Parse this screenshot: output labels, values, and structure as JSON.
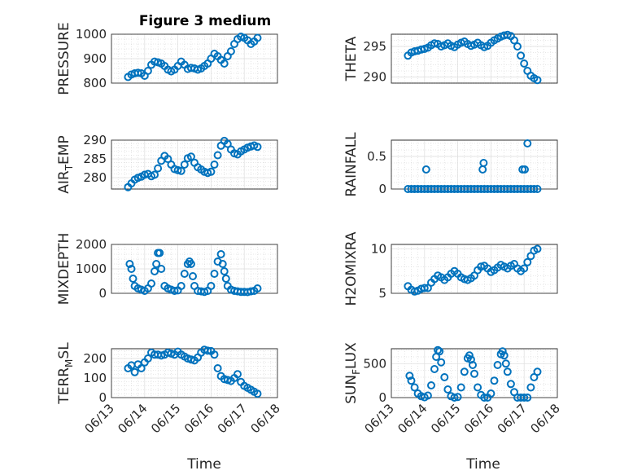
{
  "figure_title": "Figure 3 medium",
  "colors": {
    "marker": "#0072bd",
    "axes": "#262626",
    "grid": "#dedede"
  },
  "x_axis": {
    "label": "Time",
    "tick_labels": [
      "06/13",
      "06/14",
      "06/15",
      "06/16",
      "06/17",
      "06/18"
    ],
    "range_days": [
      13,
      18
    ]
  },
  "chart_data": [
    {
      "type": "scatter",
      "ylabel": "PRESSURE",
      "ylim": [
        800,
        1000
      ],
      "yticks": [
        800,
        900,
        1000
      ],
      "grid": true,
      "x": [
        13.5,
        13.6,
        13.7,
        13.8,
        13.9,
        14.0,
        14.1,
        14.2,
        14.3,
        14.4,
        14.5,
        14.6,
        14.7,
        14.8,
        14.9,
        15.0,
        15.1,
        15.2,
        15.3,
        15.4,
        15.5,
        15.6,
        15.7,
        15.8,
        15.9,
        16.0,
        16.1,
        16.2,
        16.3,
        16.4,
        16.5,
        16.6,
        16.7,
        16.8,
        16.9,
        17.0,
        17.1,
        17.2,
        17.3,
        17.4
      ],
      "y": [
        825,
        835,
        840,
        842,
        840,
        830,
        850,
        875,
        888,
        885,
        880,
        870,
        855,
        848,
        855,
        870,
        888,
        875,
        858,
        862,
        860,
        855,
        860,
        870,
        880,
        900,
        920,
        910,
        895,
        880,
        910,
        930,
        960,
        980,
        990,
        985,
        975,
        960,
        970,
        985
      ]
    },
    {
      "type": "scatter",
      "ylabel": "THETA",
      "ylim": [
        289,
        297
      ],
      "yticks": [
        290,
        295
      ],
      "grid": true,
      "x": [
        13.5,
        13.6,
        13.7,
        13.8,
        13.9,
        14.0,
        14.1,
        14.2,
        14.3,
        14.4,
        14.5,
        14.6,
        14.7,
        14.8,
        14.9,
        15.0,
        15.1,
        15.2,
        15.3,
        15.4,
        15.5,
        15.6,
        15.7,
        15.8,
        15.9,
        16.0,
        16.1,
        16.2,
        16.3,
        16.4,
        16.5,
        16.6,
        16.7,
        16.8,
        16.9,
        17.0,
        17.1,
        17.2,
        17.3,
        17.4
      ],
      "y": [
        293.5,
        294.0,
        294.2,
        294.3,
        294.5,
        294.6,
        294.8,
        295.2,
        295.5,
        295.4,
        295.0,
        295.2,
        295.5,
        295.1,
        294.9,
        295.3,
        295.6,
        295.8,
        295.4,
        295.1,
        295.3,
        295.6,
        295.2,
        294.9,
        295.1,
        295.6,
        296.0,
        296.3,
        296.6,
        296.8,
        296.9,
        296.7,
        296.0,
        295.0,
        293.5,
        292.2,
        291.0,
        290.2,
        289.8,
        289.5
      ]
    },
    {
      "type": "scatter",
      "ylabel": "AIR_TEMP",
      "ylim": [
        277,
        290
      ],
      "yticks": [
        280,
        285,
        290
      ],
      "grid": true,
      "x": [
        13.5,
        13.6,
        13.7,
        13.8,
        13.9,
        14.0,
        14.1,
        14.2,
        14.3,
        14.4,
        14.5,
        14.6,
        14.7,
        14.8,
        14.9,
        15.0,
        15.1,
        15.2,
        15.3,
        15.4,
        15.5,
        15.6,
        15.7,
        15.8,
        15.9,
        16.0,
        16.1,
        16.2,
        16.3,
        16.4,
        16.5,
        16.6,
        16.7,
        16.8,
        16.9,
        17.0,
        17.1,
        17.2,
        17.3,
        17.4
      ],
      "y": [
        277.5,
        278.5,
        279.5,
        280.0,
        280.3,
        280.8,
        281.0,
        280.4,
        280.8,
        282.5,
        284.5,
        285.8,
        285.0,
        283.5,
        282.3,
        282.0,
        281.8,
        283.5,
        285.2,
        285.6,
        284.0,
        282.8,
        282.2,
        281.6,
        281.3,
        281.6,
        283.5,
        286.0,
        288.5,
        289.8,
        289.0,
        287.5,
        286.5,
        286.2,
        287.0,
        287.5,
        288.0,
        288.3,
        288.6,
        288.2
      ]
    },
    {
      "type": "scatter",
      "ylabel": "RAINFALL",
      "ylim": [
        0,
        0.75
      ],
      "yticks": [
        0,
        0.5
      ],
      "grid": true,
      "x": [
        13.5,
        13.6,
        13.7,
        13.8,
        13.9,
        14.0,
        14.1,
        14.2,
        14.3,
        14.4,
        14.5,
        14.6,
        14.7,
        14.8,
        14.9,
        15.0,
        15.1,
        15.2,
        15.3,
        15.4,
        15.5,
        15.6,
        15.7,
        15.8,
        15.9,
        16.0,
        16.1,
        16.2,
        16.3,
        16.4,
        16.5,
        16.6,
        16.7,
        16.8,
        16.9,
        17.0,
        17.1,
        17.2,
        17.3,
        17.4,
        14.05,
        15.75,
        15.78,
        16.95,
        17.02,
        17.1
      ],
      "y": [
        0,
        0,
        0,
        0,
        0,
        0,
        0,
        0,
        0,
        0,
        0,
        0,
        0,
        0,
        0,
        0,
        0,
        0,
        0,
        0,
        0,
        0,
        0,
        0,
        0,
        0,
        0,
        0,
        0,
        0,
        0,
        0,
        0,
        0,
        0,
        0,
        0,
        0,
        0,
        0,
        0.3,
        0.3,
        0.4,
        0.3,
        0.3,
        0.7
      ]
    },
    {
      "type": "scatter",
      "ylabel": "MIXDEPTH",
      "ylim": [
        0,
        2000
      ],
      "yticks": [
        0,
        1000,
        2000
      ],
      "grid": true,
      "x": [
        13.55,
        13.6,
        13.65,
        13.7,
        13.8,
        13.9,
        14.0,
        14.1,
        14.2,
        14.3,
        14.35,
        14.4,
        14.45,
        14.5,
        14.6,
        14.7,
        14.8,
        14.9,
        15.0,
        15.1,
        15.2,
        15.3,
        15.35,
        15.4,
        15.45,
        15.5,
        15.6,
        15.7,
        15.8,
        15.9,
        16.0,
        16.1,
        16.2,
        16.3,
        16.35,
        16.4,
        16.45,
        16.5,
        16.6,
        16.7,
        16.8,
        16.9,
        17.0,
        17.1,
        17.2,
        17.3,
        17.4
      ],
      "y": [
        1200,
        1000,
        600,
        300,
        200,
        150,
        100,
        200,
        400,
        900,
        1200,
        1650,
        1650,
        1000,
        300,
        200,
        150,
        100,
        120,
        300,
        800,
        1200,
        1300,
        1200,
        700,
        300,
        100,
        80,
        60,
        100,
        300,
        800,
        1300,
        1600,
        1200,
        900,
        600,
        300,
        150,
        100,
        80,
        60,
        60,
        50,
        80,
        100,
        200
      ]
    },
    {
      "type": "scatter",
      "ylabel": "H2OMIXRA",
      "ylim": [
        5,
        10.5
      ],
      "yticks": [
        5,
        10
      ],
      "grid": true,
      "x": [
        13.5,
        13.6,
        13.7,
        13.8,
        13.9,
        14.0,
        14.1,
        14.2,
        14.3,
        14.4,
        14.5,
        14.6,
        14.7,
        14.8,
        14.9,
        15.0,
        15.1,
        15.2,
        15.3,
        15.4,
        15.5,
        15.6,
        15.7,
        15.8,
        15.9,
        16.0,
        16.1,
        16.2,
        16.3,
        16.4,
        16.5,
        16.6,
        16.7,
        16.8,
        16.9,
        17.0,
        17.1,
        17.2,
        17.3,
        17.4
      ],
      "y": [
        5.8,
        5.4,
        5.2,
        5.3,
        5.5,
        5.6,
        5.6,
        6.2,
        6.6,
        7.0,
        6.8,
        6.5,
        6.8,
        7.2,
        7.5,
        7.2,
        6.8,
        6.6,
        6.5,
        6.7,
        7.0,
        7.6,
        8.0,
        8.1,
        7.8,
        7.4,
        7.6,
        7.9,
        8.2,
        8.0,
        7.8,
        8.1,
        8.3,
        7.8,
        7.5,
        7.8,
        8.5,
        9.2,
        9.8,
        10.0
      ]
    },
    {
      "type": "scatter",
      "ylabel": "TERR_MSL",
      "ylim": [
        0,
        250
      ],
      "yticks": [
        0,
        100,
        200
      ],
      "grid": true,
      "x": [
        13.5,
        13.6,
        13.7,
        13.8,
        13.9,
        14.0,
        14.1,
        14.2,
        14.3,
        14.4,
        14.5,
        14.6,
        14.7,
        14.8,
        14.9,
        15.0,
        15.1,
        15.2,
        15.3,
        15.4,
        15.5,
        15.6,
        15.7,
        15.8,
        15.9,
        16.0,
        16.1,
        16.2,
        16.3,
        16.4,
        16.5,
        16.6,
        16.7,
        16.8,
        16.9,
        17.0,
        17.1,
        17.2,
        17.3,
        17.4
      ],
      "y": [
        150,
        165,
        130,
        170,
        150,
        180,
        200,
        230,
        220,
        220,
        215,
        220,
        230,
        225,
        220,
        235,
        220,
        210,
        200,
        195,
        190,
        205,
        230,
        245,
        240,
        238,
        220,
        150,
        110,
        95,
        90,
        85,
        100,
        120,
        80,
        60,
        50,
        40,
        30,
        20
      ]
    },
    {
      "type": "scatter",
      "ylabel": "SUN_FLUX",
      "ylim": [
        0,
        720
      ],
      "yticks": [
        0,
        500
      ],
      "grid": true,
      "x": [
        13.55,
        13.6,
        13.7,
        13.8,
        13.9,
        14.0,
        14.1,
        14.2,
        14.3,
        14.35,
        14.4,
        14.45,
        14.5,
        14.6,
        14.7,
        14.8,
        14.9,
        15.0,
        15.1,
        15.2,
        15.3,
        15.35,
        15.4,
        15.45,
        15.5,
        15.6,
        15.7,
        15.8,
        15.9,
        16.0,
        16.1,
        16.2,
        16.3,
        16.35,
        16.4,
        16.45,
        16.5,
        16.6,
        16.7,
        16.8,
        16.9,
        17.0,
        17.1,
        17.2,
        17.3,
        17.4
      ],
      "y": [
        320,
        250,
        150,
        60,
        20,
        5,
        30,
        180,
        420,
        600,
        700,
        680,
        520,
        300,
        120,
        20,
        0,
        10,
        150,
        380,
        580,
        620,
        560,
        480,
        350,
        150,
        40,
        0,
        0,
        60,
        250,
        480,
        640,
        680,
        620,
        500,
        380,
        200,
        80,
        0,
        0,
        0,
        0,
        150,
        300,
        380
      ]
    }
  ]
}
